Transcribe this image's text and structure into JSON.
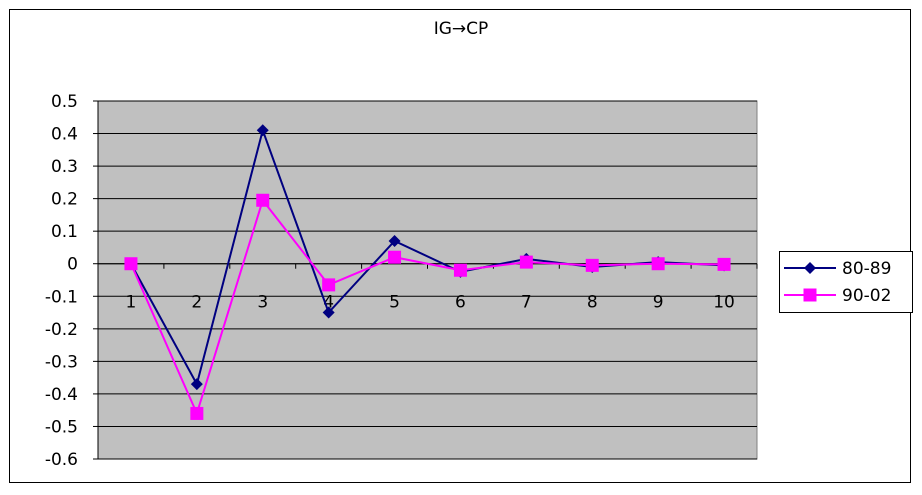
{
  "chart_data": {
    "type": "line",
    "title": "IG→CP",
    "xlabel": "",
    "ylabel": "",
    "categories": [
      "1",
      "2",
      "3",
      "4",
      "5",
      "6",
      "7",
      "8",
      "9",
      "10"
    ],
    "ylim": [
      -0.6,
      0.5
    ],
    "yticks": [
      "0.5",
      "0.4",
      "0.3",
      "0.2",
      "0.1",
      "0",
      "-0.1",
      "-0.2",
      "-0.3",
      "-0.4",
      "-0.5",
      "-0.6"
    ],
    "grid": true,
    "plot_background": "#C0C0C0",
    "legend_position": "right",
    "series": [
      {
        "name": "80-89",
        "color": "#000080",
        "marker": "diamond",
        "values": [
          0,
          -0.37,
          0.41,
          -0.15,
          0.07,
          -0.025,
          0.015,
          -0.01,
          0.005,
          -0.005
        ]
      },
      {
        "name": "90-02",
        "color": "#FF00FF",
        "marker": "square",
        "values": [
          0,
          -0.46,
          0.195,
          -0.065,
          0.02,
          -0.02,
          0.005,
          -0.005,
          0.0,
          -0.002
        ]
      }
    ]
  }
}
